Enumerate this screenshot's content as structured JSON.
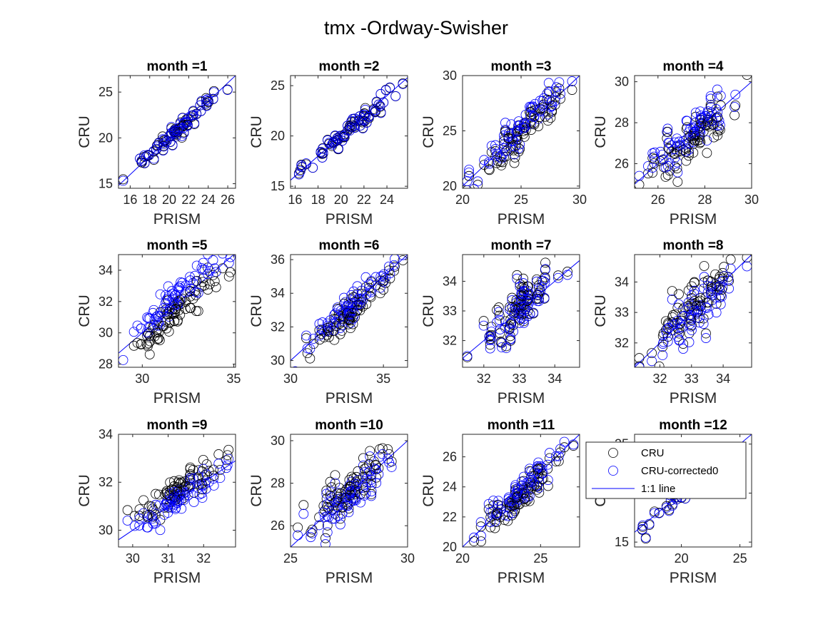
{
  "figure": {
    "title": "tmx -Ordway-Swisher"
  },
  "colors": {
    "cru": "#000000",
    "cru_corrected": "#0000ff",
    "one_to_one": "#0000ff"
  },
  "legend": {
    "location": "inside panel month =12, upper left",
    "entries": [
      {
        "label": "CRU",
        "marker": "circle",
        "color": "#000000"
      },
      {
        "label": "CRU-corrected0",
        "marker": "circle",
        "color": "#0000ff"
      },
      {
        "label": "1:1 line",
        "marker": "line",
        "color": "#0000ff"
      }
    ]
  },
  "chart_data": [
    {
      "type": "scatter",
      "title": "month =1",
      "xlabel": "PRISM",
      "ylabel": "CRU",
      "xlim": [
        14.8,
        26.8
      ],
      "ylim": [
        14.5,
        26.8
      ],
      "xticks": [
        16,
        18,
        20,
        22,
        24,
        26
      ],
      "yticks": [
        15,
        20,
        25
      ],
      "series": [
        {
          "name": "CRU"
        },
        {
          "name": "CRU-corrected0"
        },
        {
          "name": "1:1 line"
        }
      ],
      "n_points": 70,
      "spread": 0.55,
      "bias": 0,
      "corr_bias": 0
    },
    {
      "type": "scatter",
      "title": "month =2",
      "xlabel": "PRISM",
      "ylabel": "CRU",
      "xlim": [
        15.6,
        25.8
      ],
      "ylim": [
        14.8,
        26
      ],
      "xticks": [
        16,
        18,
        20,
        22,
        24
      ],
      "yticks": [
        15,
        20,
        25
      ],
      "series": [
        {
          "name": "CRU"
        },
        {
          "name": "CRU-corrected0"
        },
        {
          "name": "1:1 line"
        }
      ],
      "n_points": 70,
      "spread": 0.5,
      "bias": 0,
      "corr_bias": 0
    },
    {
      "type": "scatter",
      "title": "month =3",
      "xlabel": "PRISM",
      "ylabel": "CRU",
      "xlim": [
        20,
        30
      ],
      "ylim": [
        19.8,
        30
      ],
      "xticks": [
        20,
        25,
        30
      ],
      "yticks": [
        20,
        25,
        30
      ],
      "series": [
        {
          "name": "CRU"
        },
        {
          "name": "CRU-corrected0"
        },
        {
          "name": "1:1 line"
        }
      ],
      "n_points": 80,
      "spread": 0.75,
      "bias": -0.4,
      "corr_bias": 0.2
    },
    {
      "type": "scatter",
      "title": "month =4",
      "xlabel": "PRISM",
      "ylabel": "CRU",
      "xlim": [
        25,
        30
      ],
      "ylim": [
        24.8,
        30.3
      ],
      "xticks": [
        26,
        28,
        30
      ],
      "yticks": [
        26,
        28,
        30
      ],
      "series": [
        {
          "name": "CRU"
        },
        {
          "name": "CRU-corrected0"
        },
        {
          "name": "1:1 line"
        }
      ],
      "n_points": 80,
      "spread": 0.5,
      "bias": -0.3,
      "corr_bias": 0.1
    },
    {
      "type": "scatter",
      "title": "month =5",
      "xlabel": "PRISM",
      "ylabel": "CRU",
      "xlim": [
        28.7,
        35.1
      ],
      "ylim": [
        27.8,
        35
      ],
      "xticks": [
        30,
        35
      ],
      "yticks": [
        28,
        30,
        32,
        34
      ],
      "series": [
        {
          "name": "CRU"
        },
        {
          "name": "CRU-corrected0"
        },
        {
          "name": "1:1 line"
        }
      ],
      "n_points": 80,
      "spread": 0.6,
      "bias": -0.6,
      "corr_bias": 0.4
    },
    {
      "type": "scatter",
      "title": "month =6",
      "xlabel": "PRISM",
      "ylabel": "CRU",
      "xlim": [
        30,
        36.3
      ],
      "ylim": [
        29.6,
        36.3
      ],
      "xticks": [
        30,
        35
      ],
      "yticks": [
        30,
        32,
        34,
        36
      ],
      "series": [
        {
          "name": "CRU"
        },
        {
          "name": "CRU-corrected0"
        },
        {
          "name": "1:1 line"
        }
      ],
      "n_points": 80,
      "spread": 0.55,
      "bias": -0.2,
      "corr_bias": 0.1
    },
    {
      "type": "scatter",
      "title": "month =7",
      "xlabel": "PRISM",
      "ylabel": "CRU",
      "xlim": [
        31.4,
        34.7
      ],
      "ylim": [
        31.1,
        34.9
      ],
      "xticks": [
        32,
        33,
        34
      ],
      "yticks": [
        32,
        33,
        34
      ],
      "series": [
        {
          "name": "CRU"
        },
        {
          "name": "CRU-corrected0"
        },
        {
          "name": "1:1 line"
        }
      ],
      "n_points": 80,
      "spread": 0.45,
      "bias": 0.1,
      "corr_bias": 0
    },
    {
      "type": "scatter",
      "title": "month =8",
      "xlabel": "PRISM",
      "ylabel": "CRU",
      "xlim": [
        31.2,
        34.9
      ],
      "ylim": [
        31.2,
        34.9
      ],
      "xticks": [
        32,
        33,
        34
      ],
      "yticks": [
        32,
        33,
        34
      ],
      "series": [
        {
          "name": "CRU"
        },
        {
          "name": "CRU-corrected0"
        },
        {
          "name": "1:1 line"
        }
      ],
      "n_points": 80,
      "spread": 0.4,
      "bias": 0.15,
      "corr_bias": -0.1
    },
    {
      "type": "scatter",
      "title": "month =9",
      "xlabel": "PRISM",
      "ylabel": "CRU",
      "xlim": [
        29.6,
        32.9
      ],
      "ylim": [
        29.3,
        34
      ],
      "xticks": [
        30,
        31,
        32
      ],
      "yticks": [
        30,
        32,
        34
      ],
      "series": [
        {
          "name": "CRU"
        },
        {
          "name": "CRU-corrected0"
        },
        {
          "name": "1:1 line"
        }
      ],
      "n_points": 80,
      "spread": 0.35,
      "bias": 0.4,
      "corr_bias": 0
    },
    {
      "type": "scatter",
      "title": "month =10",
      "xlabel": "PRISM",
      "ylabel": "CRU",
      "xlim": [
        25,
        30
      ],
      "ylim": [
        25,
        30.3
      ],
      "xticks": [
        25,
        30
      ],
      "yticks": [
        26,
        28,
        30
      ],
      "series": [
        {
          "name": "CRU"
        },
        {
          "name": "CRU-corrected0"
        },
        {
          "name": "1:1 line"
        }
      ],
      "n_points": 80,
      "spread": 0.45,
      "bias": 0.2,
      "corr_bias": -0.1
    },
    {
      "type": "scatter",
      "title": "month =11",
      "xlabel": "PRISM",
      "ylabel": "CRU",
      "xlim": [
        20,
        27.5
      ],
      "ylim": [
        20,
        27.5
      ],
      "xticks": [
        20,
        25
      ],
      "yticks": [
        20,
        22,
        24,
        26
      ],
      "series": [
        {
          "name": "CRU"
        },
        {
          "name": "CRU-corrected0"
        },
        {
          "name": "1:1 line"
        }
      ],
      "n_points": 80,
      "spread": 0.5,
      "bias": -0.2,
      "corr_bias": 0.1
    },
    {
      "type": "scatter",
      "title": "month =12",
      "xlabel": "PRISM",
      "ylabel": "CRU",
      "xlim": [
        16,
        26
      ],
      "ylim": [
        14.5,
        26
      ],
      "xticks": [
        20,
        25
      ],
      "yticks": [
        15,
        20,
        25
      ],
      "series": [
        {
          "name": "CRU"
        },
        {
          "name": "CRU-corrected0"
        },
        {
          "name": "1:1 line"
        }
      ],
      "n_points": 70,
      "spread": 0.6,
      "bias": 0,
      "corr_bias": 0
    }
  ]
}
